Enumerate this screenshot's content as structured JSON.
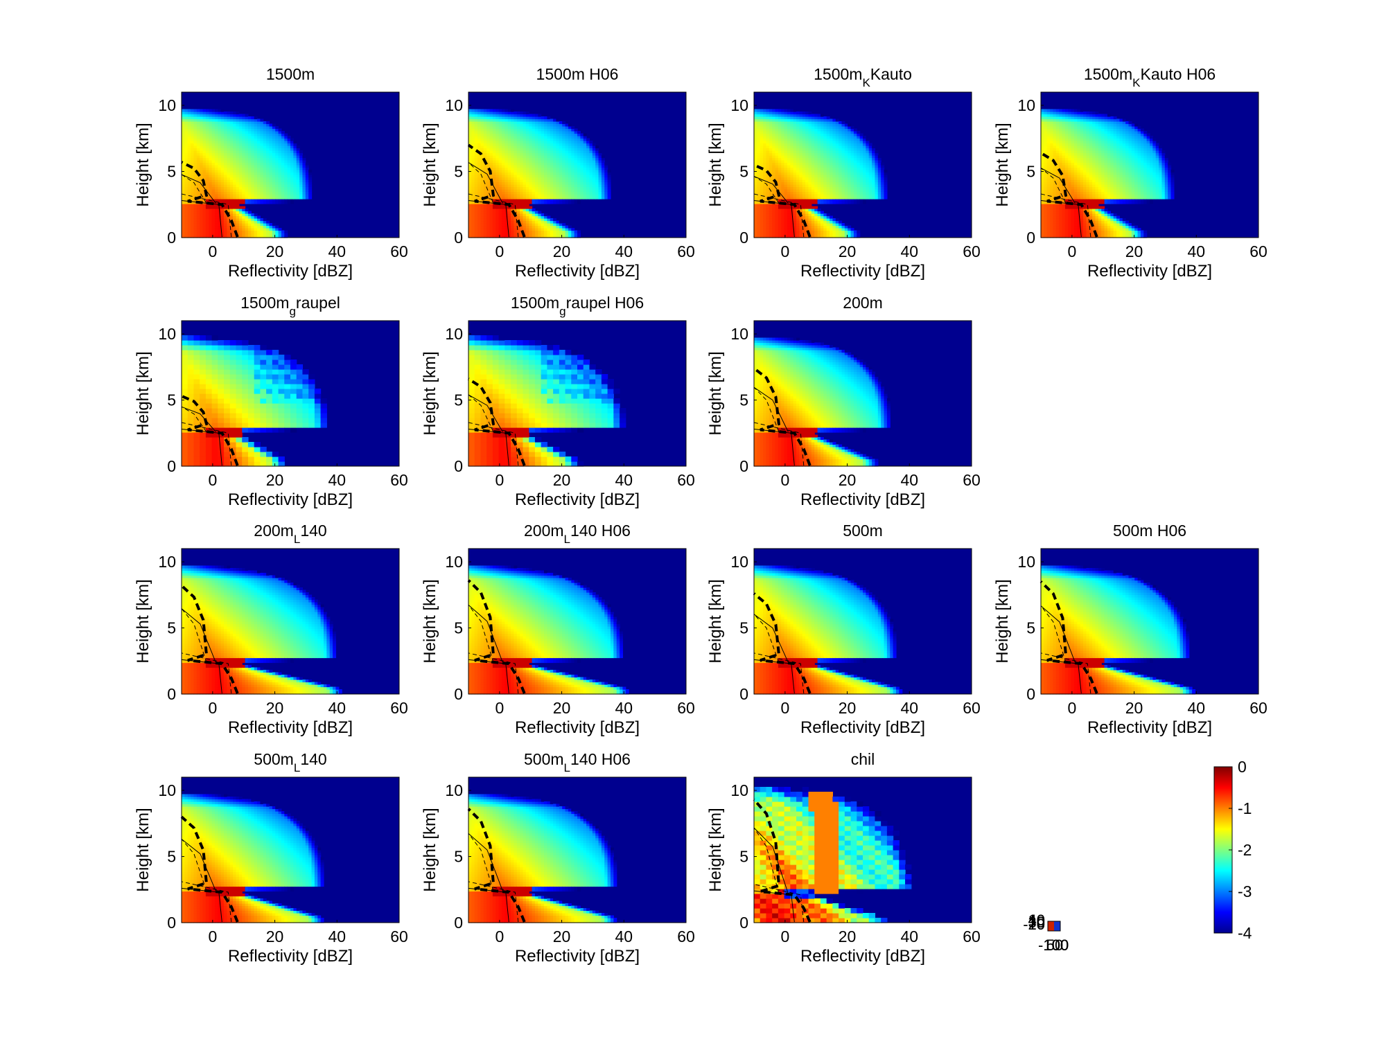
{
  "chart_data": {
    "type": "heatmap",
    "shared_axes": {
      "xlabel": "Reflectivity [dBZ]",
      "ylabel": "Height [km]",
      "xlim": [
        -10,
        60
      ],
      "ylim": [
        0,
        11
      ],
      "xticks": [
        0,
        20,
        40,
        60
      ],
      "yticks": [
        0,
        5,
        10
      ]
    },
    "colorbar": {
      "range": [
        -4,
        0
      ],
      "ticks": [
        "0",
        "-1",
        "-2",
        "-3",
        "-4"
      ],
      "colormap": "jet"
    },
    "mini_colorbar": {
      "tick_labels": [
        "40",
        "30",
        "20",
        "10",
        "0",
        "-10"
      ],
      "xtick_labels": [
        "-100",
        "50",
        "100"
      ]
    },
    "panels": [
      {
        "title": "1500m",
        "sub": "",
        "rest": "",
        "melt_km": 2.6,
        "ice_extent_dbz": 32,
        "ice_top_km": 9.8,
        "rain_extent_dbz": 22,
        "dashed_top_km": 5.7,
        "style": "smooth"
      },
      {
        "title": "1500m H06",
        "sub": "",
        "rest": "",
        "melt_km": 2.6,
        "ice_extent_dbz": 36,
        "ice_top_km": 9.8,
        "rain_extent_dbz": 24,
        "dashed_top_km": 7.0,
        "style": "smooth"
      },
      {
        "title": "1500m",
        "sub": "K",
        "rest": "Kauto",
        "melt_km": 2.6,
        "ice_extent_dbz": 33,
        "ice_top_km": 9.8,
        "rain_extent_dbz": 22,
        "dashed_top_km": 5.5,
        "style": "smooth"
      },
      {
        "title": "1500m",
        "sub": "K",
        "rest": "Kauto H06",
        "melt_km": 2.6,
        "ice_extent_dbz": 33,
        "ice_top_km": 9.8,
        "rain_extent_dbz": 22,
        "dashed_top_km": 6.4,
        "style": "smooth"
      },
      {
        "title": "1500m",
        "sub": "g",
        "rest": "raupel",
        "melt_km": 2.6,
        "ice_extent_dbz": 37,
        "ice_top_km": 9.8,
        "rain_extent_dbz": 22,
        "dashed_top_km": 5.3,
        "style": "blocky"
      },
      {
        "title": "1500m",
        "sub": "g",
        "rest": "raupel H06",
        "melt_km": 2.6,
        "ice_extent_dbz": 40,
        "ice_top_km": 9.8,
        "rain_extent_dbz": 24,
        "dashed_top_km": 6.6,
        "style": "blocky"
      },
      {
        "title": "200m",
        "sub": "",
        "rest": "",
        "melt_km": 2.6,
        "ice_extent_dbz": 34,
        "ice_top_km": 9.8,
        "rain_extent_dbz": 28,
        "dashed_top_km": 7.4,
        "style": "smooth"
      },
      {
        "title": "200m",
        "sub": "L",
        "rest": "140",
        "melt_km": 2.4,
        "ice_extent_dbz": 40,
        "ice_top_km": 9.8,
        "rain_extent_dbz": 40,
        "dashed_top_km": 8.2,
        "style": "smooth"
      },
      {
        "title": "200m",
        "sub": "L",
        "rest": "140 H06",
        "melt_km": 2.4,
        "ice_extent_dbz": 40,
        "ice_top_km": 9.8,
        "rain_extent_dbz": 40,
        "dashed_top_km": 8.6,
        "style": "smooth"
      },
      {
        "title": "500m",
        "sub": "",
        "rest": "",
        "melt_km": 2.4,
        "ice_extent_dbz": 36,
        "ice_top_km": 9.8,
        "rain_extent_dbz": 36,
        "dashed_top_km": 7.6,
        "style": "smooth"
      },
      {
        "title": "500m H06",
        "sub": "",
        "rest": "",
        "melt_km": 2.4,
        "ice_extent_dbz": 38,
        "ice_top_km": 9.8,
        "rain_extent_dbz": 38,
        "dashed_top_km": 8.5,
        "style": "smooth"
      },
      {
        "title": "500m",
        "sub": "L",
        "rest": "140",
        "melt_km": 2.4,
        "ice_extent_dbz": 36,
        "ice_top_km": 9.8,
        "rain_extent_dbz": 34,
        "dashed_top_km": 8.0,
        "style": "smooth"
      },
      {
        "title": "500m",
        "sub": "L",
        "rest": "140 H06",
        "melt_km": 2.4,
        "ice_extent_dbz": 38,
        "ice_top_km": 9.8,
        "rain_extent_dbz": 36,
        "dashed_top_km": 8.6,
        "style": "smooth"
      },
      {
        "title": "chil",
        "sub": "",
        "rest": "",
        "melt_km": 2.2,
        "ice_extent_dbz": 40,
        "ice_top_km": 10.3,
        "rain_extent_dbz": 30,
        "dashed_top_km": 9.3,
        "style": "obs"
      }
    ]
  },
  "colors": {
    "background": "#ffffff",
    "axes": "#000000",
    "low": "#00008f",
    "high": "#800000"
  }
}
